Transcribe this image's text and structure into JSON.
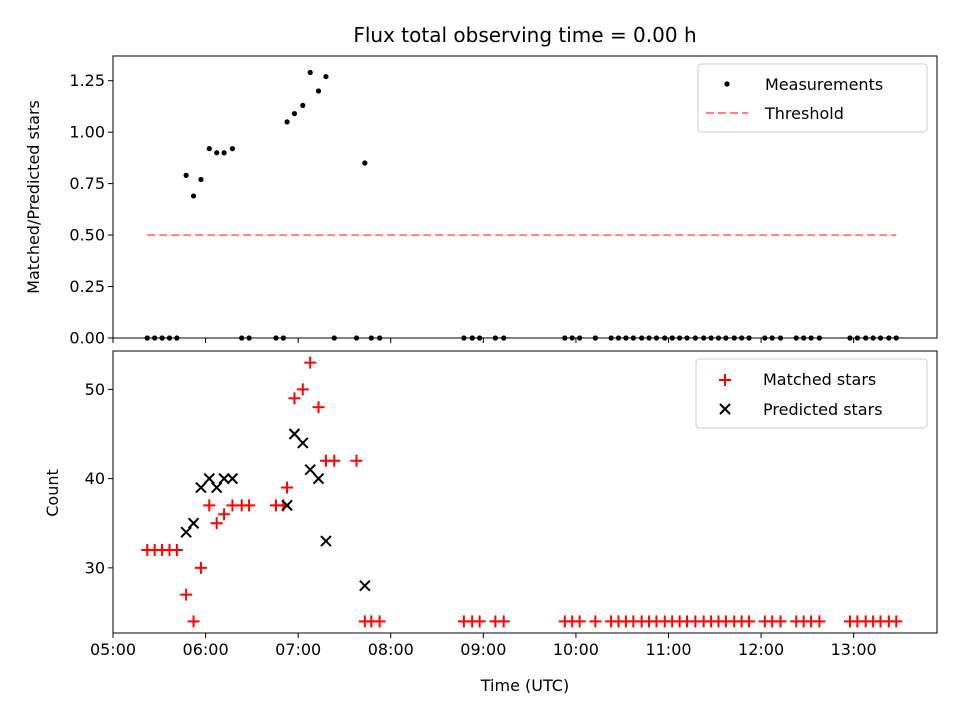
{
  "chart_data": [
    {
      "type": "scatter",
      "title": "Flux total observing time = 0.00 h",
      "xlabel": "",
      "ylabel": "Matched/Predicted stars",
      "xlim": [
        5.0,
        13.9
      ],
      "ylim": [
        0.0,
        1.37
      ],
      "yticks": [
        0.0,
        0.25,
        0.5,
        0.75,
        1.0,
        1.25
      ],
      "ytick_labels": [
        "0.00",
        "0.25",
        "0.50",
        "0.75",
        "1.00",
        "1.25"
      ],
      "xticks": [
        5,
        6,
        7,
        8,
        9,
        10,
        11,
        12,
        13
      ],
      "legend": {
        "position": "upper-right",
        "entries": [
          "Measurements",
          "Threshold"
        ]
      },
      "series": [
        {
          "name": "Measurements",
          "kind": "points",
          "color": "#000000",
          "x": [
            5.37,
            5.45,
            5.53,
            5.61,
            5.69,
            5.79,
            5.87,
            5.95,
            6.04,
            6.12,
            6.2,
            6.29,
            6.39,
            6.47,
            6.76,
            6.84,
            6.88,
            6.96,
            7.05,
            7.13,
            7.22,
            7.3,
            7.39,
            7.63,
            7.72,
            7.79,
            7.88,
            8.79,
            8.88,
            8.96,
            9.13,
            9.22,
            9.88,
            9.96,
            10.04,
            10.21,
            10.38,
            10.46,
            10.54,
            10.62,
            10.71,
            10.79,
            10.87,
            10.96,
            11.04,
            11.12,
            11.2,
            11.29,
            11.38,
            11.46,
            11.54,
            11.62,
            11.71,
            11.79,
            11.87,
            12.04,
            12.12,
            12.21,
            12.38,
            12.46,
            12.54,
            12.63,
            12.96,
            13.04,
            13.13,
            13.21,
            13.29,
            13.38,
            13.46
          ],
          "y": [
            0,
            0,
            0,
            0,
            0,
            0.79,
            0.69,
            0.77,
            0.92,
            0.9,
            0.9,
            0.92,
            0,
            0,
            0,
            0,
            1.05,
            1.09,
            1.13,
            1.29,
            1.2,
            1.27,
            0,
            0,
            0.85,
            0,
            0,
            0,
            0,
            0,
            0,
            0,
            0,
            0,
            0,
            0,
            0,
            0,
            0,
            0,
            0,
            0,
            0,
            0,
            0,
            0,
            0,
            0,
            0,
            0,
            0,
            0,
            0,
            0,
            0,
            0,
            0,
            0,
            0,
            0,
            0,
            0,
            0,
            0,
            0,
            0,
            0,
            0,
            0
          ]
        },
        {
          "name": "Threshold",
          "kind": "dashed-line",
          "color": "#ff7f7f",
          "x": [
            5.37,
            13.46
          ],
          "y": [
            0.5,
            0.5
          ]
        }
      ]
    },
    {
      "type": "scatter",
      "title": "",
      "xlabel": "Time (UTC)",
      "ylabel": "Count",
      "xlim": [
        5.0,
        13.9
      ],
      "ylim": [
        22.7,
        54.3
      ],
      "yticks": [
        30,
        40,
        50
      ],
      "ytick_labels": [
        "30",
        "40",
        "50"
      ],
      "xticks": [
        5,
        6,
        7,
        8,
        9,
        10,
        11,
        12,
        13
      ],
      "xtick_labels": [
        "05:00",
        "06:00",
        "07:00",
        "08:00",
        "09:00",
        "10:00",
        "11:00",
        "12:00",
        "13:00"
      ],
      "legend": {
        "position": "upper-right",
        "entries": [
          "Matched stars",
          "Predicted stars"
        ]
      },
      "series": [
        {
          "name": "Matched stars",
          "marker": "plus",
          "color": "#ff0000",
          "x": [
            5.37,
            5.45,
            5.53,
            5.61,
            5.69,
            5.79,
            5.87,
            5.95,
            6.04,
            6.12,
            6.2,
            6.29,
            6.39,
            6.47,
            6.76,
            6.84,
            6.88,
            6.96,
            7.05,
            7.13,
            7.22,
            7.3,
            7.39,
            7.63,
            7.72,
            7.79,
            7.88,
            8.79,
            8.88,
            8.96,
            9.13,
            9.22,
            9.88,
            9.96,
            10.04,
            10.21,
            10.38,
            10.46,
            10.54,
            10.62,
            10.71,
            10.79,
            10.87,
            10.96,
            11.04,
            11.12,
            11.2,
            11.29,
            11.38,
            11.46,
            11.54,
            11.62,
            11.71,
            11.79,
            11.87,
            12.04,
            12.12,
            12.21,
            12.38,
            12.46,
            12.54,
            12.63,
            12.96,
            13.04,
            13.13,
            13.21,
            13.29,
            13.38,
            13.46
          ],
          "y": [
            32,
            32,
            32,
            32,
            32,
            27,
            24,
            30,
            37,
            35,
            36,
            37,
            37,
            37,
            37,
            37,
            39,
            49,
            50,
            53,
            48,
            42,
            42,
            42,
            24,
            24,
            24,
            24,
            24,
            24,
            24,
            24,
            24,
            24,
            24,
            24,
            24,
            24,
            24,
            24,
            24,
            24,
            24,
            24,
            24,
            24,
            24,
            24,
            24,
            24,
            24,
            24,
            24,
            24,
            24,
            24,
            24,
            24,
            24,
            24,
            24,
            24,
            24,
            24,
            24,
            24,
            24,
            24,
            24
          ]
        },
        {
          "name": "Predicted stars",
          "marker": "x",
          "color": "#000000",
          "x": [
            5.79,
            5.87,
            5.95,
            6.04,
            6.12,
            6.2,
            6.29,
            6.88,
            6.96,
            7.05,
            7.13,
            7.22,
            7.3,
            7.72
          ],
          "y": [
            34,
            35,
            39,
            40,
            39,
            40,
            40,
            37,
            45,
            44,
            41,
            40,
            33,
            28
          ]
        }
      ]
    }
  ]
}
